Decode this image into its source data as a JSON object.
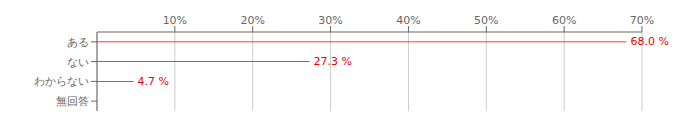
{
  "chart_data": {
    "type": "bar",
    "orientation": "horizontal",
    "categories": [
      "ある",
      "ない",
      "わからない",
      "無回答"
    ],
    "values": [
      68.0,
      27.3,
      4.7,
      0.0
    ],
    "value_labels": [
      "68.0 %",
      "27.3 %",
      "4.7 %",
      null
    ],
    "color": "#ee0000",
    "xlim": [
      0,
      70
    ],
    "xticks": [
      {
        "value": 10,
        "label": "10%"
      },
      {
        "value": 20,
        "label": "20%"
      },
      {
        "value": 30,
        "label": "30%"
      },
      {
        "value": 40,
        "label": "40%"
      },
      {
        "value": 50,
        "label": "50%"
      },
      {
        "value": 60,
        "label": "60%"
      },
      {
        "value": 70,
        "label": "70%"
      }
    ],
    "grid": true,
    "data_labels": true
  }
}
